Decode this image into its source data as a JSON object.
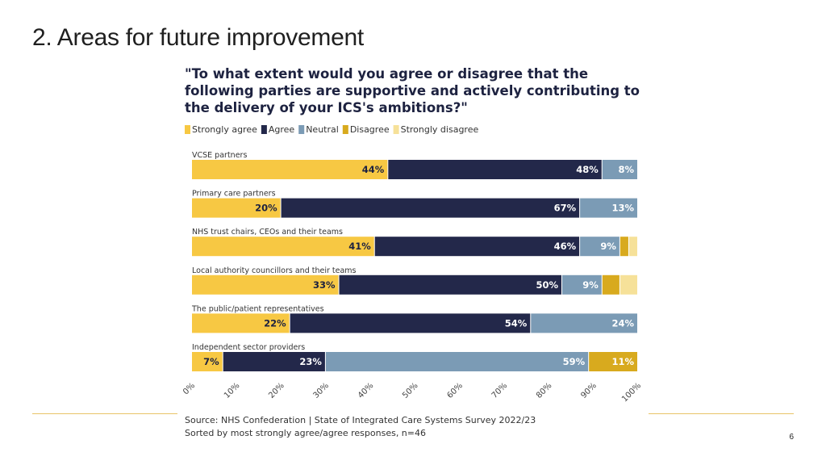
{
  "slide": {
    "title": "2. Areas for future improvement",
    "page_number": "6"
  },
  "chart_data": {
    "type": "bar",
    "orientation": "horizontal",
    "stacked": true,
    "title": "\"To what extent would you agree or disagree that the following parties are supportive and actively contributing to the delivery of your ICS's ambitions?\"",
    "categories": [
      "VCSE partners",
      "Primary care partners",
      "NHS trust chairs, CEOs and their teams",
      "Local authority councillors and their teams",
      "The public/patient representatives",
      "Independent sector providers"
    ],
    "series": [
      {
        "name": "Strongly agree",
        "color": "#f7c843",
        "label_color": "#1d2240",
        "values": [
          44,
          20,
          41,
          33,
          22,
          7
        ]
      },
      {
        "name": "Agree",
        "color": "#23284a",
        "label_color": "#ffffff",
        "values": [
          48,
          67,
          46,
          50,
          54,
          23
        ]
      },
      {
        "name": "Neutral",
        "color": "#7b9bb5",
        "label_color": "#ffffff",
        "values": [
          8,
          13,
          9,
          9,
          24,
          59
        ]
      },
      {
        "name": "Disagree",
        "color": "#d8aa1e",
        "label_color": "#ffffff",
        "values": [
          0,
          0,
          2,
          4,
          0,
          11
        ]
      },
      {
        "name": "Strongly disagree",
        "color": "#f6e199",
        "label_color": "#1d2240",
        "values": [
          0,
          0,
          2,
          4,
          0,
          0
        ]
      }
    ],
    "data_labels": [
      [
        "44%",
        "48%",
        "8%",
        "",
        ""
      ],
      [
        "20%",
        "67%",
        "13%",
        "",
        ""
      ],
      [
        "41%",
        "46%",
        "9%",
        "",
        ""
      ],
      [
        "33%",
        "50%",
        "9%",
        "",
        ""
      ],
      [
        "22%",
        "54%",
        "24%",
        "",
        ""
      ],
      [
        "7%",
        "23%",
        "59%",
        "11%",
        ""
      ]
    ],
    "xlim": [
      0,
      100
    ],
    "xticks": [
      "0%",
      "10%",
      "20%",
      "30%",
      "40%",
      "50%",
      "60%",
      "70%",
      "80%",
      "90%",
      "100%"
    ],
    "legend_position": "top-left"
  },
  "source": {
    "line1": "Source: NHS Confederation | State of Integrated Care Systems Survey 2022/23",
    "line2": "Sorted by most strongly agree/agree responses, n=46"
  }
}
